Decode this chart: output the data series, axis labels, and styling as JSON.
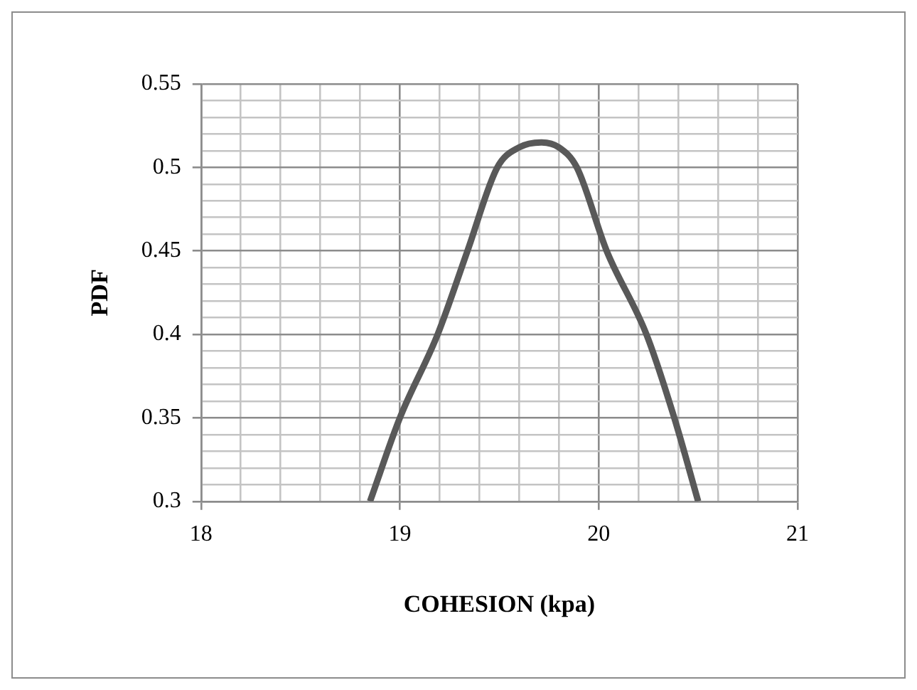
{
  "chart_data": {
    "type": "line",
    "xlabel": "COHESION (kpa)",
    "ylabel": "PDF",
    "xlim": [
      18,
      21
    ],
    "ylim": [
      0.3,
      0.55
    ],
    "xticks": [
      18,
      {
        "value": 18.2,
        "label": null
      },
      {
        "value": 18.4,
        "label": null
      },
      {
        "value": 18.6,
        "label": null
      },
      {
        "value": 18.8,
        "label": null
      },
      19,
      {
        "value": 19.2,
        "label": null
      },
      {
        "value": 19.4,
        "label": null
      },
      {
        "value": 19.6,
        "label": null
      },
      {
        "value": 19.8,
        "label": null
      },
      20,
      {
        "value": 20.2,
        "label": null
      },
      {
        "value": 20.4,
        "label": null
      },
      {
        "value": 20.6,
        "label": null
      },
      {
        "value": 20.8,
        "label": null
      },
      21
    ],
    "yticks": [
      0.3,
      {
        "value": 0.31,
        "label": null
      },
      {
        "value": 0.32,
        "label": null
      },
      {
        "value": 0.33,
        "label": null
      },
      {
        "value": 0.34,
        "label": null
      },
      0.35,
      {
        "value": 0.36,
        "label": null
      },
      {
        "value": 0.37,
        "label": null
      },
      {
        "value": 0.38,
        "label": null
      },
      {
        "value": 0.39,
        "label": null
      },
      0.4,
      {
        "value": 0.41,
        "label": null
      },
      {
        "value": 0.42,
        "label": null
      },
      {
        "value": 0.43,
        "label": null
      },
      {
        "value": 0.44,
        "label": null
      },
      0.45,
      {
        "value": 0.46,
        "label": null
      },
      {
        "value": 0.47,
        "label": null
      },
      {
        "value": 0.48,
        "label": null
      },
      {
        "value": 0.49,
        "label": null
      },
      0.5,
      {
        "value": 0.51,
        "label": null
      },
      {
        "value": 0.52,
        "label": null
      },
      {
        "value": 0.53,
        "label": null
      },
      {
        "value": 0.54,
        "label": null
      },
      0.55
    ],
    "grid": true,
    "legend": false,
    "marker": "none",
    "line_style": "solid",
    "series": [
      {
        "color": "#595959",
        "x": [
          18.85,
          19.0,
          19.19,
          19.34,
          19.49,
          19.6,
          19.71,
          19.8,
          19.89,
          20.04,
          20.24,
          20.38,
          20.5
        ],
        "values": [
          0.3,
          0.35,
          0.4,
          0.45,
          0.5,
          0.512,
          0.515,
          0.512,
          0.5,
          0.45,
          0.4,
          0.35,
          0.3
        ]
      }
    ]
  }
}
